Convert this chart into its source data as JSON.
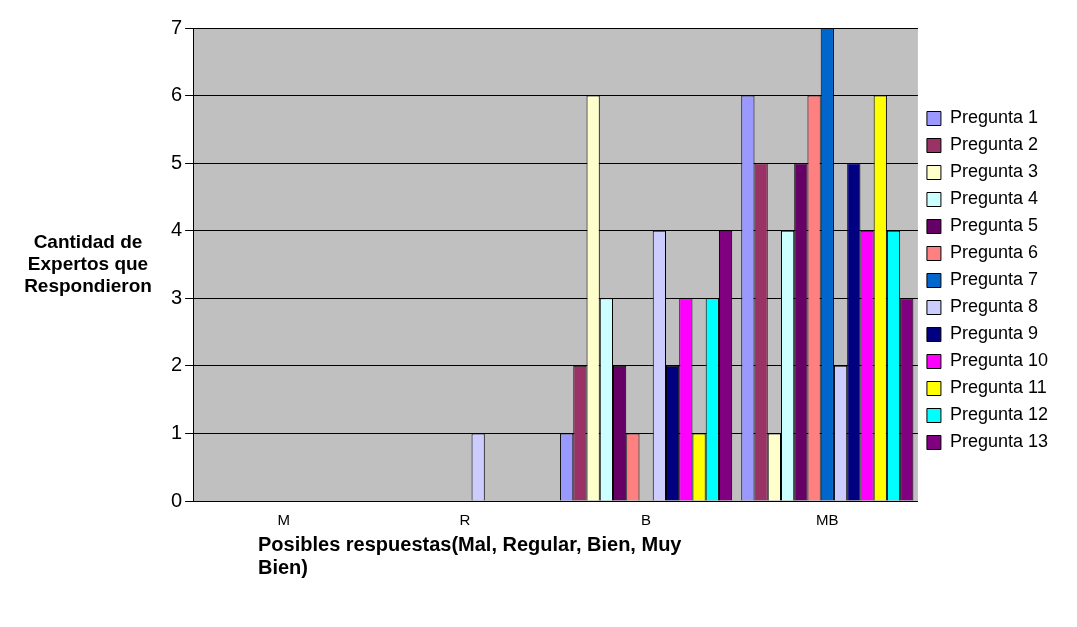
{
  "chart_data": {
    "type": "bar",
    "xlabel": "Posibles respuestas(Mal, Regular, Bien, Muy Bien)",
    "ylabel": "Cantidad de Expertos que Respondieron",
    "categories": [
      "M",
      "R",
      "B",
      "MB"
    ],
    "ylim": [
      0,
      7
    ],
    "yticks": [
      0,
      1,
      2,
      3,
      4,
      5,
      6,
      7
    ],
    "grid": "y",
    "legend": "right",
    "series": [
      {
        "name": "Pregunta 1",
        "color": "#9999ff",
        "values": [
          0,
          0,
          1,
          6
        ]
      },
      {
        "name": "Pregunta 2",
        "color": "#993366",
        "values": [
          0,
          0,
          2,
          5
        ]
      },
      {
        "name": "Pregunta 3",
        "color": "#ffffcc",
        "values": [
          0,
          0,
          6,
          1
        ]
      },
      {
        "name": "Pregunta 4",
        "color": "#ccffff",
        "values": [
          0,
          0,
          3,
          4
        ]
      },
      {
        "name": "Pregunta 5",
        "color": "#660066",
        "values": [
          0,
          0,
          2,
          5
        ]
      },
      {
        "name": "Pregunta 6",
        "color": "#ff8080",
        "values": [
          0,
          0,
          1,
          6
        ]
      },
      {
        "name": "Pregunta 7",
        "color": "#0066cc",
        "values": [
          0,
          0,
          0,
          7
        ]
      },
      {
        "name": "Pregunta 8",
        "color": "#ccccff",
        "values": [
          0,
          1,
          4,
          2
        ]
      },
      {
        "name": "Pregunta 9",
        "color": "#000080",
        "values": [
          0,
          0,
          2,
          5
        ]
      },
      {
        "name": "Pregunta 10",
        "color": "#ff00ff",
        "values": [
          0,
          0,
          3,
          4
        ]
      },
      {
        "name": "Pregunta 11",
        "color": "#ffff00",
        "values": [
          0,
          0,
          1,
          6
        ]
      },
      {
        "name": "Pregunta 12",
        "color": "#00ffff",
        "values": [
          0,
          0,
          3,
          4
        ]
      },
      {
        "name": "Pregunta 13",
        "color": "#800080",
        "values": [
          0,
          0,
          4,
          3
        ]
      }
    ]
  }
}
